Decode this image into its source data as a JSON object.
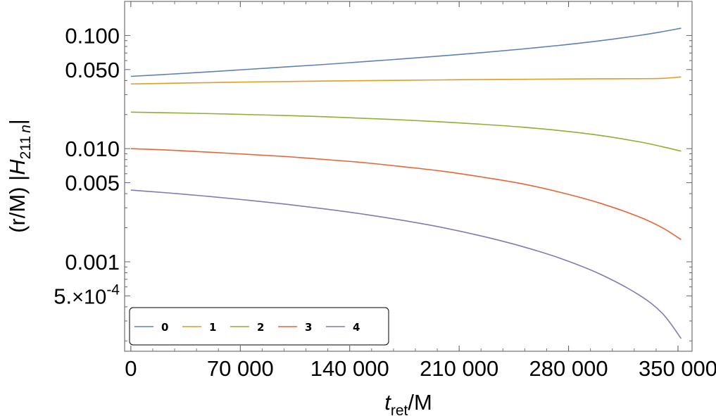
{
  "chart_data": {
    "type": "line",
    "xlabel": {
      "main": "t",
      "sub": "ret",
      "suffix": "/M"
    },
    "ylabel": {
      "prefix": "(r/M) |",
      "main": "H",
      "sub": "211",
      "sub_italic": "n",
      "suffix": "|"
    },
    "x_ticks": [
      {
        "value": 0,
        "label": "0"
      },
      {
        "value": 70000,
        "label": "70 000"
      },
      {
        "value": 140000,
        "label": "140 000"
      },
      {
        "value": 210000,
        "label": "210 000"
      },
      {
        "value": 280000,
        "label": "280 000"
      },
      {
        "value": 350000,
        "label": "350 000"
      }
    ],
    "y_ticks": [
      {
        "value": 0.1,
        "label": "0.100"
      },
      {
        "value": 0.05,
        "label": "0.050"
      },
      {
        "value": 0.01,
        "label": "0.010"
      },
      {
        "value": 0.005,
        "label": "0.005"
      },
      {
        "value": 0.001,
        "label": "0.001"
      },
      {
        "value": 0.0005,
        "mantissa": "5.",
        "exp_label": "-4"
      }
    ],
    "xlim": [
      -4000,
      359000
    ],
    "ylim": [
      0.000162,
      0.2
    ],
    "y_scale": "log",
    "frame": true,
    "grid": false,
    "legend_position": "bottom-left",
    "x": [
      0,
      25000,
      50000,
      75000,
      100000,
      125000,
      150000,
      175000,
      200000,
      225000,
      250000,
      275000,
      300000,
      325000,
      340000,
      352000
    ],
    "series": [
      {
        "name": "0",
        "color": "#5E81B5",
        "values": [
          0.0435,
          0.0455,
          0.0477,
          0.0502,
          0.0528,
          0.0556,
          0.0588,
          0.0623,
          0.0662,
          0.0706,
          0.0758,
          0.082,
          0.0898,
          0.1,
          0.108,
          0.116
        ]
      },
      {
        "name": "1",
        "color": "#E19C24",
        "values": [
          0.0373,
          0.0378,
          0.0383,
          0.0388,
          0.0392,
          0.0396,
          0.0399,
          0.0402,
          0.0405,
          0.0408,
          0.041,
          0.0412,
          0.0414,
          0.0415,
          0.0418,
          0.043
        ]
      },
      {
        "name": "2",
        "color": "#8FB032",
        "values": [
          0.021,
          0.0207,
          0.0204,
          0.02,
          0.0196,
          0.0191,
          0.0185,
          0.0179,
          0.0172,
          0.0164,
          0.0155,
          0.0144,
          0.0131,
          0.0115,
          0.0104,
          0.0095
        ]
      },
      {
        "name": "3",
        "color": "#EB6235",
        "values": [
          0.01,
          0.0097,
          0.0093,
          0.0089,
          0.0085,
          0.008,
          0.0075,
          0.0069,
          0.0063,
          0.0056,
          0.0049,
          0.0041,
          0.0033,
          0.0025,
          0.002,
          0.00157
        ]
      },
      {
        "name": "4",
        "color": "#8778B3",
        "values": [
          0.0043,
          0.00405,
          0.00378,
          0.0035,
          0.00322,
          0.00292,
          0.00262,
          0.00231,
          0.002,
          0.00168,
          0.00137,
          0.00107,
          0.00078,
          0.00051,
          0.00035,
          0.00021
        ]
      }
    ]
  }
}
